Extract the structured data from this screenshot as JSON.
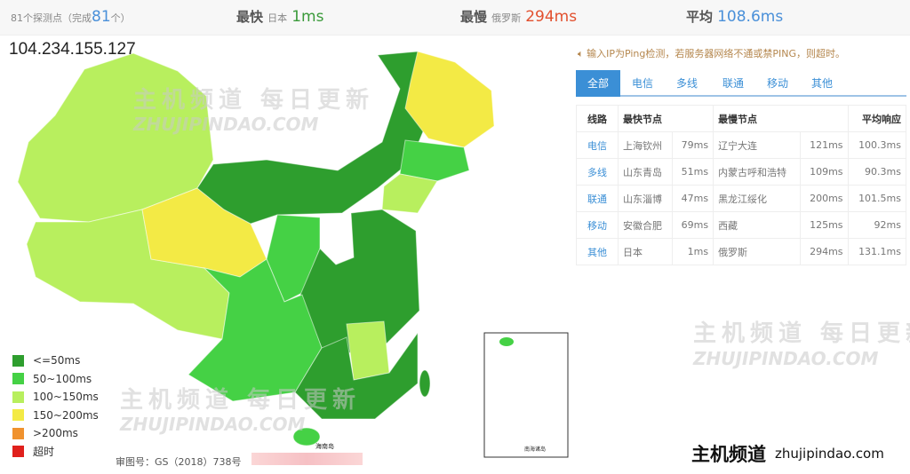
{
  "header": {
    "probe_count": "81个探测点（完成",
    "completed": "81",
    "unit": "个）",
    "fastest_label": "最快",
    "fastest_node": "日本",
    "fastest_value": "1ms",
    "slowest_label": "最慢",
    "slowest_node": "俄罗斯",
    "slowest_value": "294ms",
    "avg_label": "平均",
    "avg_value": "108.6ms"
  },
  "ip": "104.234.155.127",
  "notice": "输入IP为Ping检测，若服务器网络不通或禁PING，则超时。",
  "notice_icon": "speaker-icon",
  "tabs": [
    "全部",
    "电信",
    "多线",
    "联通",
    "移动",
    "其他"
  ],
  "table": {
    "headers": [
      "线路",
      "最快节点",
      "最慢节点",
      "平均响应"
    ],
    "rows": [
      {
        "line": "电信",
        "fast": "上海钦州",
        "fast_ms": "79ms",
        "slow": "辽宁大连",
        "slow_ms": "121ms",
        "avg": "100.3ms"
      },
      {
        "line": "多线",
        "fast": "山东青岛",
        "fast_ms": "51ms",
        "slow": "内蒙古呼和浩特",
        "slow_ms": "109ms",
        "avg": "90.3ms"
      },
      {
        "line": "联通",
        "fast": "山东淄博",
        "fast_ms": "47ms",
        "slow": "黑龙江绥化",
        "slow_ms": "200ms",
        "avg": "101.5ms"
      },
      {
        "line": "移动",
        "fast": "安徽合肥",
        "fast_ms": "69ms",
        "slow": "西藏",
        "slow_ms": "125ms",
        "avg": "92ms"
      },
      {
        "line": "其他",
        "fast": "日本",
        "fast_ms": "1ms",
        "slow": "俄罗斯",
        "slow_ms": "294ms",
        "avg": "131.1ms"
      }
    ]
  },
  "legend": [
    {
      "label": "<=50ms",
      "color": "#2e9e2e"
    },
    {
      "label": "50~100ms",
      "color": "#45d145"
    },
    {
      "label": "100~150ms",
      "color": "#b8ef5e"
    },
    {
      "label": "150~200ms",
      "color": "#f3ea45"
    },
    {
      "label": ">200ms",
      "color": "#f0922e"
    },
    {
      "label": "超时",
      "color": "#e0201c"
    }
  ],
  "approval": "审图号：GS（2018）738号",
  "map_labels": {
    "hainan": "海南岛",
    "south_sea": "南海诸岛"
  },
  "watermark": {
    "cn": "主机频道 每日更新",
    "en": "ZHUJIPINDAO.COM"
  },
  "brand": {
    "cn": "主机频道",
    "en": "zhujipindao.com"
  },
  "colors": {
    "fast": "#3a9a3a",
    "slow": "#e2502e",
    "avg": "#4a90d9",
    "accent": "#3b8fd6"
  }
}
